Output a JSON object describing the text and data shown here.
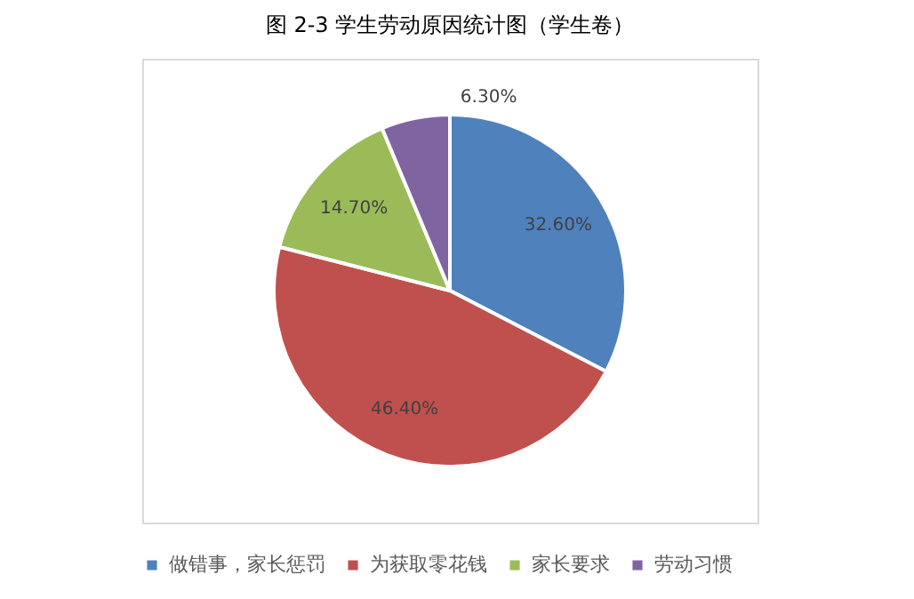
{
  "chart_data": {
    "type": "pie",
    "title": "图 2-3    学生劳动原因统计图（学生卷）",
    "categories": [
      "做错事，家长惩罚",
      "为获取零花钱",
      "家长要求",
      "劳动习惯"
    ],
    "values": [
      32.6,
      46.4,
      14.7,
      6.3
    ],
    "colors": [
      "#4f81bd",
      "#c0504d",
      "#9bbb59",
      "#8064a2"
    ],
    "value_labels": [
      "32.60%",
      "46.40%",
      "14.70%",
      "6.30%"
    ],
    "legend": "bottom"
  }
}
